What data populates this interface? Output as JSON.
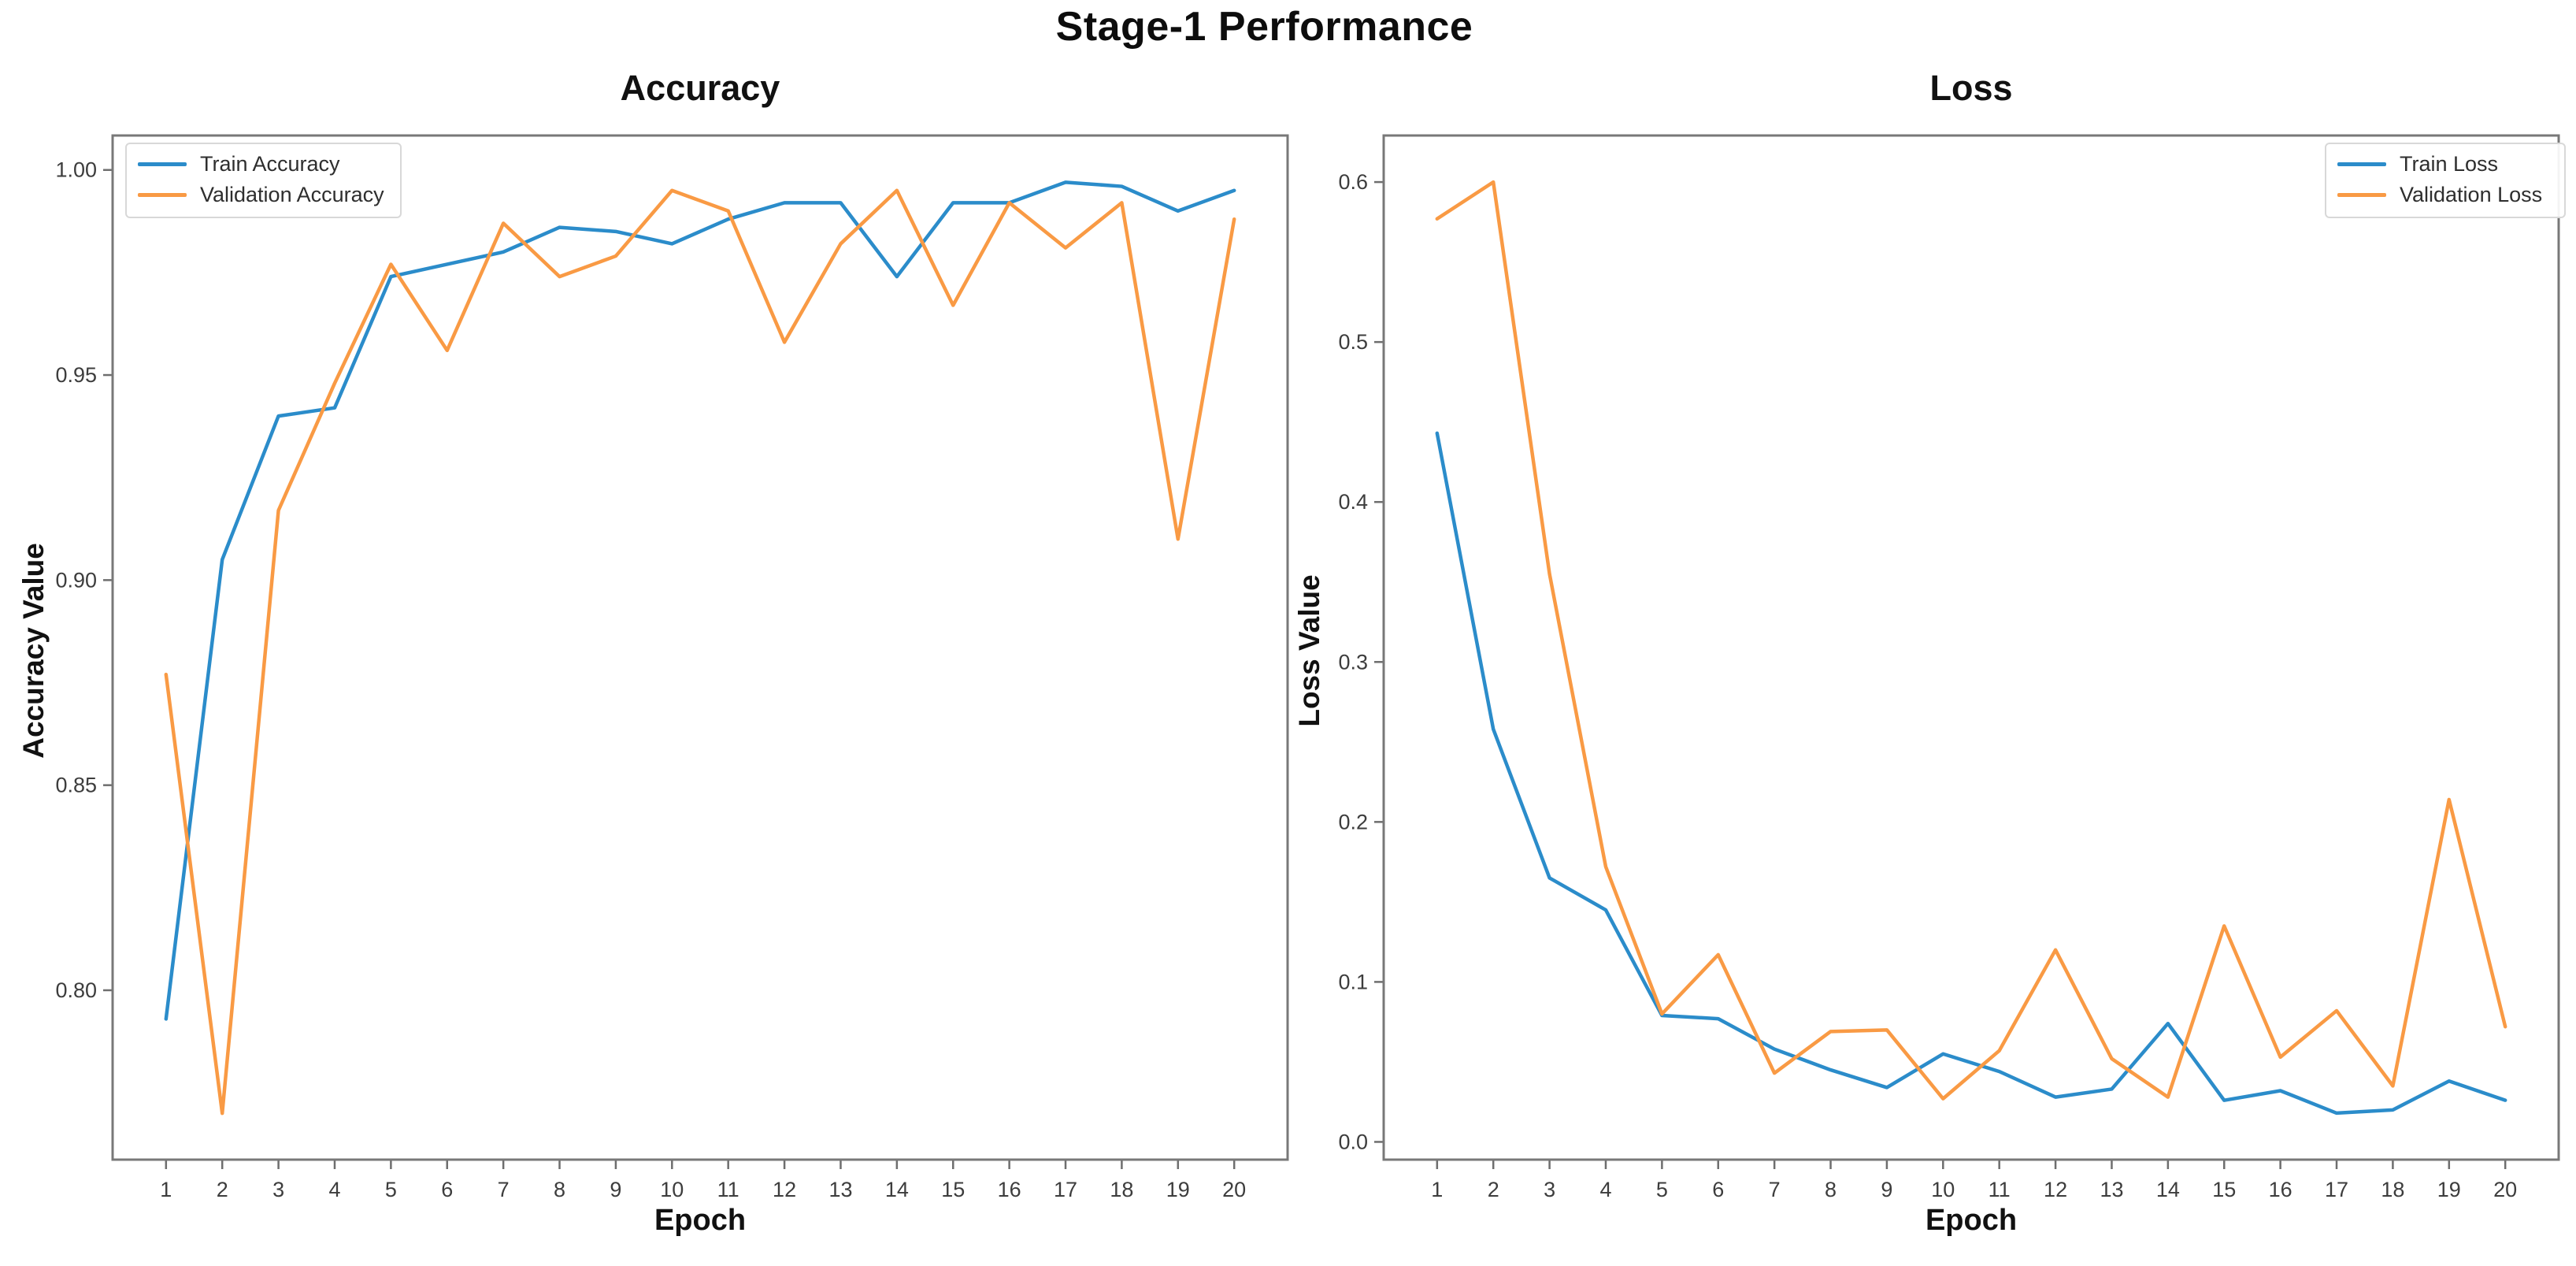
{
  "figure": {
    "suptitle": "Stage-1 Performance"
  },
  "colors": {
    "spine": "#787878",
    "tick_mark": "#6e6e6e",
    "tick_label": "#3d3d3d"
  },
  "chart_data": [
    {
      "type": "line",
      "title": "Accuracy",
      "xlabel": "Epoch",
      "ylabel": "Accuracy Value",
      "x": [
        1,
        2,
        3,
        4,
        5,
        6,
        7,
        8,
        9,
        10,
        11,
        12,
        13,
        14,
        15,
        16,
        17,
        18,
        19,
        20
      ],
      "series": [
        {
          "name": "Train Accuracy",
          "color": "#2b8cca",
          "values": [
            0.793,
            0.905,
            0.94,
            0.942,
            0.974,
            0.977,
            0.98,
            0.986,
            0.985,
            0.982,
            0.988,
            0.992,
            0.992,
            0.974,
            0.992,
            0.992,
            0.997,
            0.996,
            0.99,
            0.995
          ]
        },
        {
          "name": "Validation Accuracy",
          "color": "#f99a44",
          "values": [
            0.877,
            0.77,
            0.917,
            0.948,
            0.977,
            0.956,
            0.987,
            0.974,
            0.979,
            0.995,
            0.99,
            0.958,
            0.982,
            0.995,
            0.967,
            0.992,
            0.981,
            0.992,
            0.91,
            0.988
          ]
        }
      ],
      "xlim": [
        0.05,
        20.95
      ],
      "ylim": [
        0.7587,
        1.0084
      ],
      "xticks": [
        1,
        2,
        3,
        4,
        5,
        6,
        7,
        8,
        9,
        10,
        11,
        12,
        13,
        14,
        15,
        16,
        17,
        18,
        19,
        20
      ],
      "yticks": [
        0.8,
        0.85,
        0.9,
        0.95,
        1.0
      ],
      "ytick_labels": [
        "0.80",
        "0.85",
        "0.90",
        "0.95",
        "1.00"
      ],
      "legend_position": "upper left",
      "grid": false
    },
    {
      "type": "line",
      "title": "Loss",
      "xlabel": "Epoch",
      "ylabel": "Loss Value",
      "x": [
        1,
        2,
        3,
        4,
        5,
        6,
        7,
        8,
        9,
        10,
        11,
        12,
        13,
        14,
        15,
        16,
        17,
        18,
        19,
        20
      ],
      "series": [
        {
          "name": "Train Loss",
          "color": "#2b8cca",
          "values": [
            0.443,
            0.258,
            0.165,
            0.145,
            0.079,
            0.077,
            0.058,
            0.045,
            0.034,
            0.055,
            0.044,
            0.028,
            0.033,
            0.074,
            0.026,
            0.032,
            0.018,
            0.02,
            0.038,
            0.026
          ]
        },
        {
          "name": "Validation Loss",
          "color": "#f99a44",
          "values": [
            0.577,
            0.6,
            0.355,
            0.172,
            0.08,
            0.117,
            0.043,
            0.069,
            0.07,
            0.027,
            0.057,
            0.12,
            0.052,
            0.028,
            0.135,
            0.053,
            0.082,
            0.035,
            0.214,
            0.072
          ]
        }
      ],
      "xlim": [
        0.05,
        20.95
      ],
      "ylim": [
        -0.0111,
        0.6291
      ],
      "xticks": [
        1,
        2,
        3,
        4,
        5,
        6,
        7,
        8,
        9,
        10,
        11,
        12,
        13,
        14,
        15,
        16,
        17,
        18,
        19,
        20
      ],
      "yticks": [
        0.0,
        0.1,
        0.2,
        0.3,
        0.4,
        0.5,
        0.6
      ],
      "ytick_labels": [
        "0.0",
        "0.1",
        "0.2",
        "0.3",
        "0.4",
        "0.5",
        "0.6"
      ],
      "legend_position": "upper right",
      "grid": false
    }
  ]
}
